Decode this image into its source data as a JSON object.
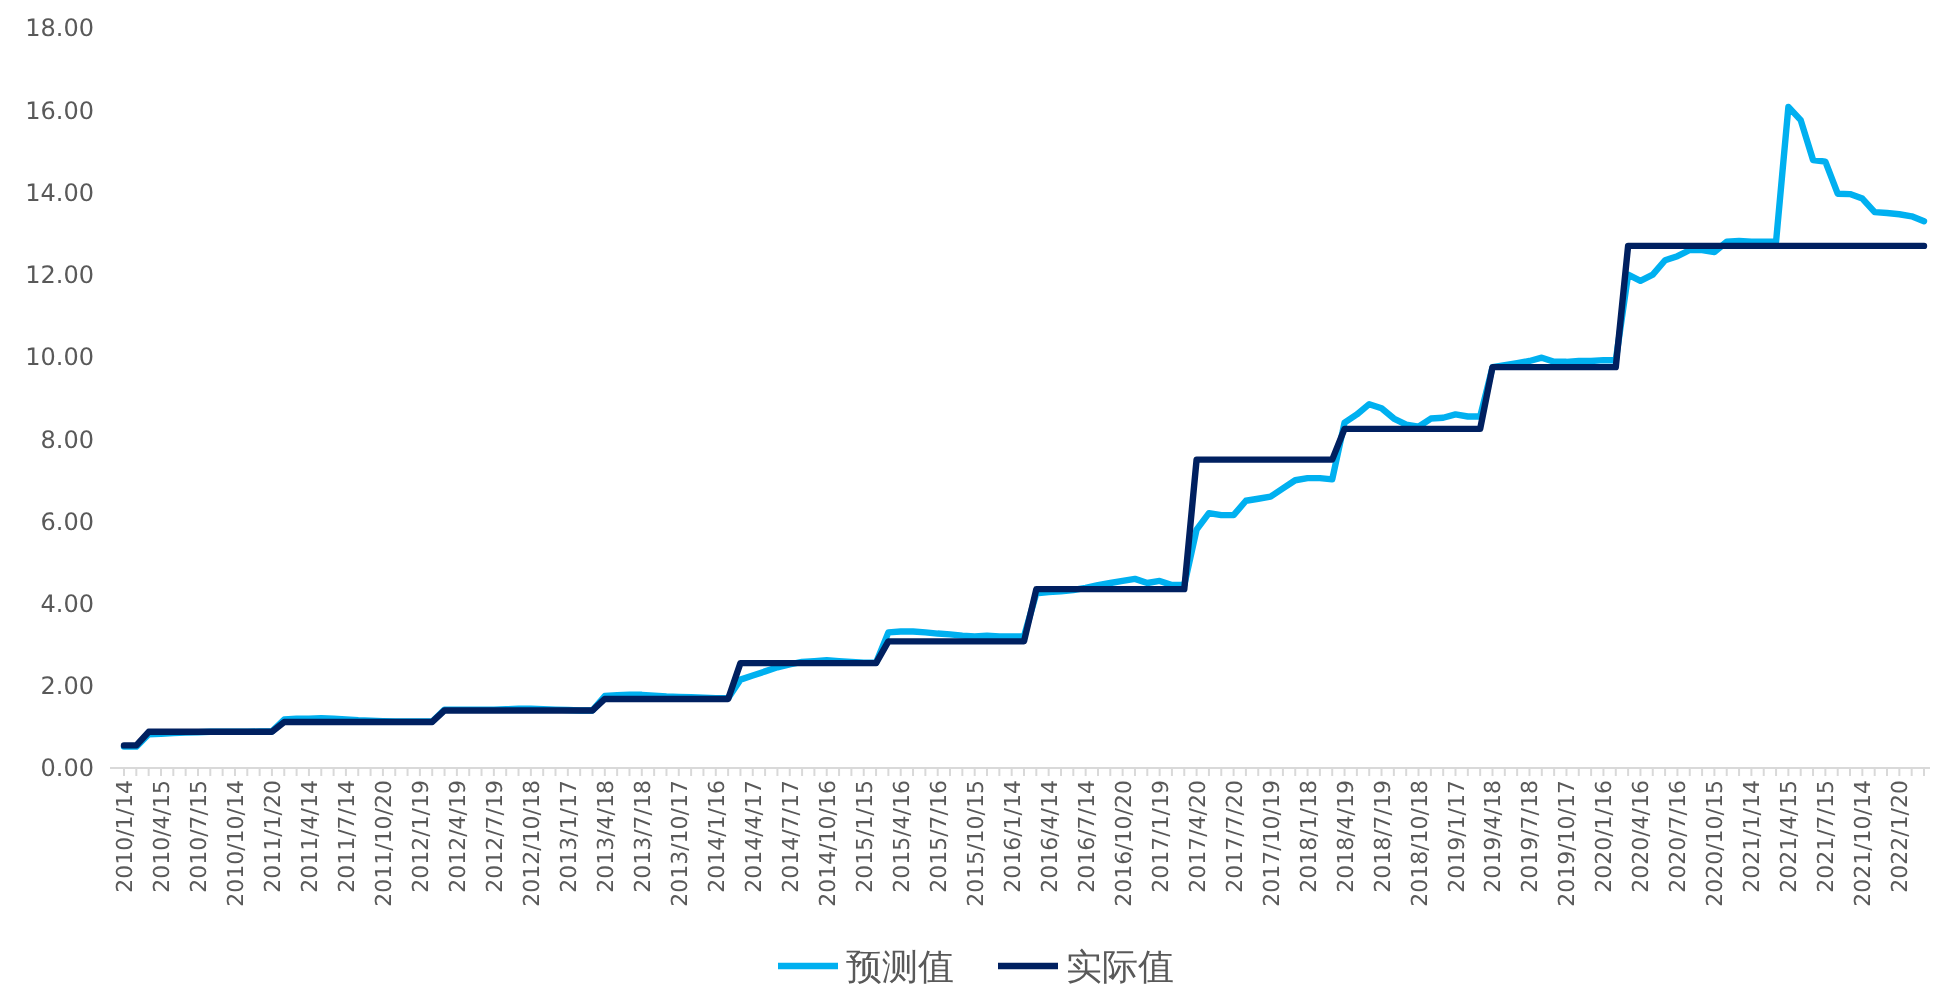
{
  "chart_data": {
    "type": "line",
    "categories": [
      "2010/1/14",
      null,
      null,
      "2010/4/15",
      null,
      null,
      "2010/7/15",
      null,
      null,
      "2010/10/14",
      null,
      null,
      "2011/1/20",
      null,
      null,
      "2011/4/14",
      null,
      null,
      "2011/7/14",
      null,
      null,
      "2011/10/20",
      null,
      null,
      "2012/1/19",
      null,
      null,
      "2012/4/19",
      null,
      null,
      "2012/7/19",
      null,
      null,
      "2012/10/18",
      null,
      null,
      "2013/1/17",
      null,
      null,
      "2013/4/18",
      null,
      null,
      "2013/7/18",
      null,
      null,
      "2013/10/17",
      null,
      null,
      "2014/1/16",
      null,
      null,
      "2014/4/17",
      null,
      null,
      "2014/7/17",
      null,
      null,
      "2014/10/16",
      null,
      null,
      "2015/1/15",
      null,
      null,
      "2015/4/16",
      null,
      null,
      "2015/7/16",
      null,
      null,
      "2015/10/15",
      null,
      null,
      "2016/1/14",
      null,
      null,
      "2016/4/14",
      null,
      null,
      "2016/7/14",
      null,
      null,
      "2016/10/20",
      null,
      null,
      "2017/1/19",
      null,
      null,
      "2017/4/20",
      null,
      null,
      "2017/7/20",
      null,
      null,
      "2017/10/19",
      null,
      null,
      "2018/1/18",
      null,
      null,
      "2018/4/19",
      null,
      null,
      "2018/7/19",
      null,
      null,
      "2018/10/18",
      null,
      null,
      "2019/1/17",
      null,
      null,
      "2019/4/18",
      null,
      null,
      "2019/7/18",
      null,
      null,
      "2019/10/17",
      null,
      null,
      "2020/1/16",
      null,
      null,
      "2020/4/16",
      null,
      null,
      "2020/7/16",
      null,
      null,
      "2020/10/15",
      null,
      null,
      "2021/1/14",
      null,
      null,
      "2021/4/15",
      null,
      null,
      "2021/7/15",
      null,
      null,
      "2021/10/14",
      null,
      null,
      "2022/1/20",
      null,
      null
    ],
    "series": [
      {
        "name": "预测值",
        "color": "#00b0f0",
        "values": [
          0.52,
          0.52,
          0.82,
          0.83,
          0.85,
          0.86,
          0.87,
          0.88,
          0.88,
          0.88,
          0.88,
          0.89,
          0.89,
          1.18,
          1.2,
          1.2,
          1.21,
          1.2,
          1.18,
          1.16,
          1.15,
          1.14,
          1.13,
          1.13,
          1.13,
          1.13,
          1.42,
          1.42,
          1.42,
          1.42,
          1.42,
          1.43,
          1.44,
          1.44,
          1.43,
          1.42,
          1.41,
          1.4,
          1.4,
          1.75,
          1.77,
          1.78,
          1.78,
          1.76,
          1.74,
          1.73,
          1.72,
          1.71,
          1.7,
          1.7,
          2.15,
          2.25,
          2.35,
          2.45,
          2.52,
          2.58,
          2.6,
          2.62,
          2.6,
          2.58,
          2.56,
          2.56,
          3.3,
          3.32,
          3.32,
          3.3,
          3.27,
          3.25,
          3.22,
          3.2,
          3.22,
          3.2,
          3.2,
          3.2,
          4.25,
          4.28,
          4.3,
          4.33,
          4.38,
          4.45,
          4.5,
          4.55,
          4.6,
          4.5,
          4.55,
          4.45,
          4.45,
          5.8,
          6.2,
          6.15,
          6.15,
          6.5,
          6.55,
          6.6,
          6.8,
          7.0,
          7.05,
          7.05,
          7.02,
          8.4,
          8.6,
          8.85,
          8.75,
          8.5,
          8.35,
          8.3,
          8.5,
          8.52,
          8.6,
          8.55,
          8.55,
          9.75,
          9.8,
          9.85,
          9.9,
          9.98,
          9.88,
          9.88,
          9.9,
          9.9,
          9.92,
          9.92,
          12.0,
          11.85,
          12.0,
          12.35,
          12.45,
          12.6,
          12.6,
          12.55,
          12.8,
          12.82,
          12.8,
          12.8,
          12.8,
          16.08,
          15.76,
          14.79,
          14.75,
          13.97,
          13.96,
          13.85,
          13.52,
          13.5,
          13.47,
          13.42,
          13.3
        ]
      },
      {
        "name": "实际值",
        "color": "#002060",
        "values": [
          0.55,
          0.55,
          0.88,
          0.88,
          0.88,
          0.88,
          0.88,
          0.88,
          0.88,
          0.88,
          0.88,
          0.88,
          0.88,
          1.12,
          1.12,
          1.12,
          1.12,
          1.12,
          1.12,
          1.12,
          1.12,
          1.12,
          1.12,
          1.12,
          1.12,
          1.12,
          1.4,
          1.4,
          1.4,
          1.4,
          1.4,
          1.4,
          1.4,
          1.4,
          1.4,
          1.4,
          1.4,
          1.4,
          1.4,
          1.68,
          1.68,
          1.68,
          1.68,
          1.68,
          1.68,
          1.68,
          1.68,
          1.68,
          1.68,
          1.68,
          2.55,
          2.55,
          2.55,
          2.55,
          2.55,
          2.55,
          2.55,
          2.55,
          2.55,
          2.55,
          2.55,
          2.55,
          3.08,
          3.08,
          3.08,
          3.08,
          3.08,
          3.08,
          3.08,
          3.08,
          3.08,
          3.08,
          3.08,
          3.08,
          4.35,
          4.35,
          4.35,
          4.35,
          4.35,
          4.35,
          4.35,
          4.35,
          4.35,
          4.35,
          4.35,
          4.35,
          4.35,
          7.5,
          7.5,
          7.5,
          7.5,
          7.5,
          7.5,
          7.5,
          7.5,
          7.5,
          7.5,
          7.5,
          7.5,
          8.25,
          8.25,
          8.25,
          8.25,
          8.25,
          8.25,
          8.25,
          8.25,
          8.25,
          8.25,
          8.25,
          8.25,
          9.75,
          9.75,
          9.75,
          9.75,
          9.75,
          9.75,
          9.75,
          9.75,
          9.75,
          9.75,
          9.75,
          12.7,
          12.7,
          12.7,
          12.7,
          12.7,
          12.7,
          12.7,
          12.7,
          12.7,
          12.7,
          12.7,
          12.7,
          12.7,
          12.7,
          12.7,
          12.7,
          12.7,
          12.7,
          12.7,
          12.7,
          12.7,
          12.7,
          12.7,
          12.7,
          12.7
        ]
      }
    ],
    "ylim": [
      0,
      18
    ],
    "yticks": [
      {
        "value": 0,
        "label": "0.00"
      },
      {
        "value": 2,
        "label": "2.00"
      },
      {
        "value": 4,
        "label": "4.00"
      },
      {
        "value": 6,
        "label": "6.00"
      },
      {
        "value": 8,
        "label": "8.00"
      },
      {
        "value": 10,
        "label": "10.00"
      },
      {
        "value": 12,
        "label": "12.00"
      },
      {
        "value": 14,
        "label": "14.00"
      },
      {
        "value": 16,
        "label": "16.00"
      },
      {
        "value": 18,
        "label": "18.00"
      }
    ],
    "grid": false,
    "legend": "bottom",
    "marker": "none",
    "line_style": "solid"
  }
}
